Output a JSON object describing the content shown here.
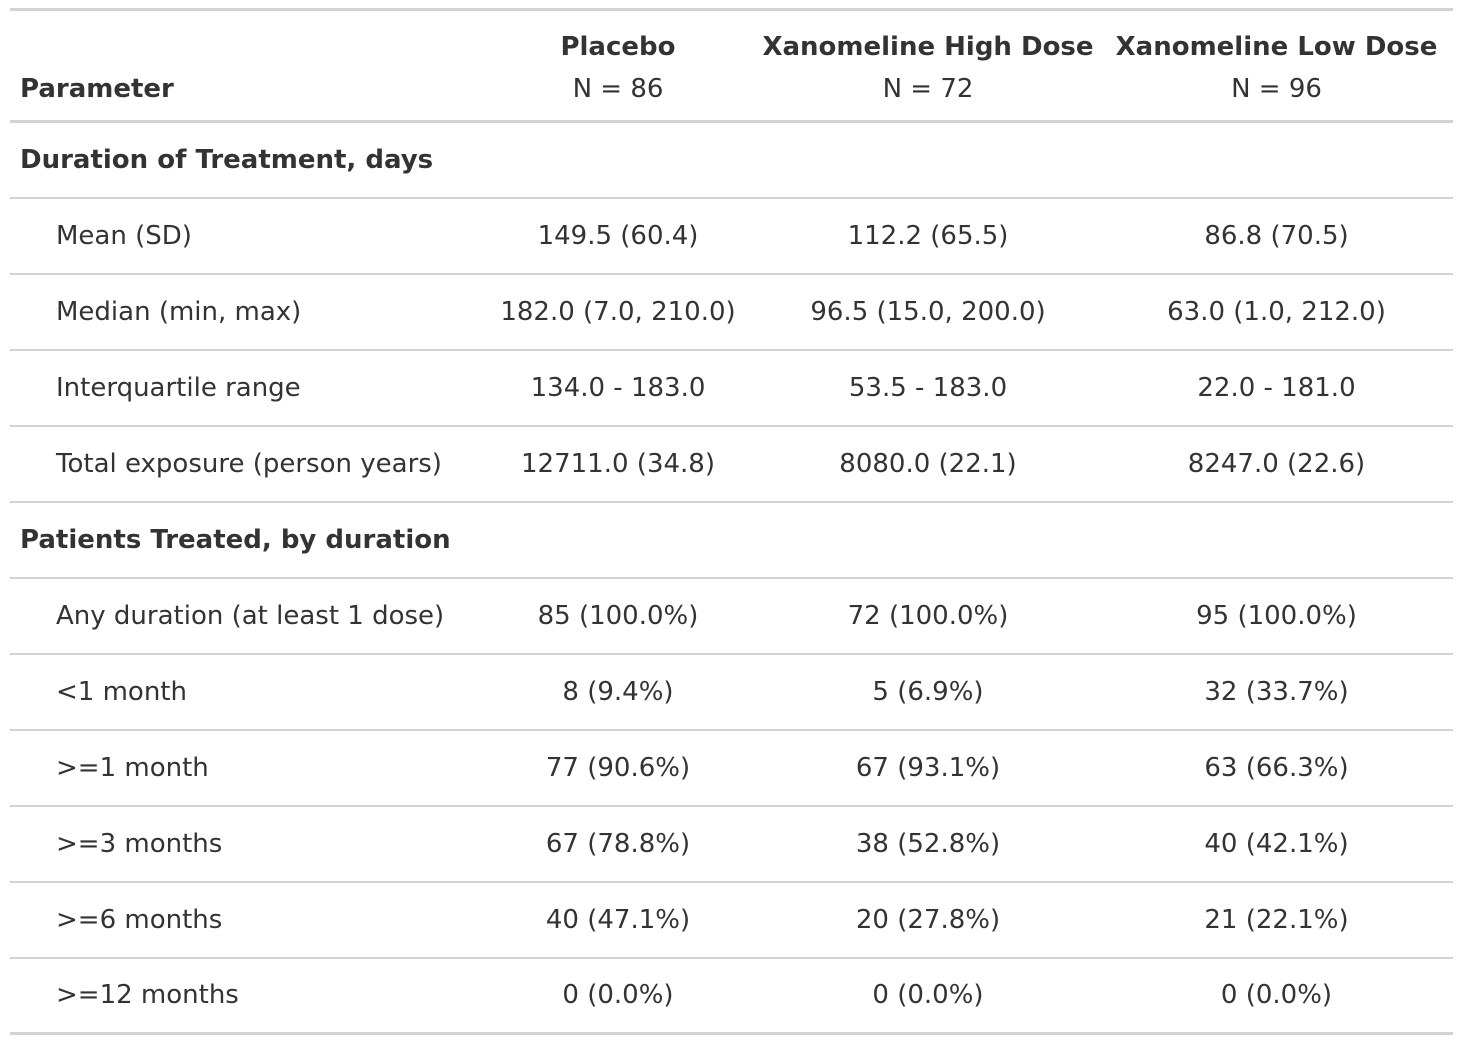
{
  "header": {
    "parameter_label": "Parameter",
    "arms": [
      {
        "name": "Placebo",
        "n_label": "N = 86"
      },
      {
        "name": "Xanomeline High Dose",
        "n_label": "N = 72"
      },
      {
        "name": "Xanomeline Low Dose",
        "n_label": "N = 96"
      }
    ]
  },
  "groups": [
    {
      "title": "Duration of Treatment, days",
      "rows": [
        {
          "label": "Mean (SD)",
          "values": [
            "149.5 (60.4)",
            "112.2 (65.5)",
            "86.8 (70.5)"
          ]
        },
        {
          "label": "Median (min, max)",
          "values": [
            "182.0 (7.0, 210.0)",
            "96.5 (15.0, 200.0)",
            "63.0 (1.0, 212.0)"
          ]
        },
        {
          "label": "Interquartile range",
          "values": [
            "134.0 - 183.0",
            "53.5 - 183.0",
            "22.0 - 181.0"
          ]
        },
        {
          "label": "Total exposure (person years)",
          "values": [
            "12711.0 (34.8)",
            "8080.0 (22.1)",
            "8247.0 (22.6)"
          ]
        }
      ]
    },
    {
      "title": "Patients Treated, by duration",
      "rows": [
        {
          "label": "Any duration (at least 1 dose)",
          "values": [
            "85 (100.0%)",
            "72 (100.0%)",
            "95 (100.0%)"
          ]
        },
        {
          "label": "<1 month",
          "values": [
            "8 (9.4%)",
            "5 (6.9%)",
            "32 (33.7%)"
          ]
        },
        {
          "label": ">=1 month",
          "values": [
            "77 (90.6%)",
            "67 (93.1%)",
            "63 (66.3%)"
          ]
        },
        {
          "label": ">=3 months",
          "values": [
            "67 (78.8%)",
            "38 (52.8%)",
            "40 (42.1%)"
          ]
        },
        {
          "label": ">=6 months",
          "values": [
            "40 (47.1%)",
            "20 (27.8%)",
            "21 (22.1%)"
          ]
        },
        {
          "label": ">=12 months",
          "values": [
            "0 (0.0%)",
            "0 (0.0%)",
            "0 (0.0%)"
          ]
        }
      ]
    }
  ]
}
